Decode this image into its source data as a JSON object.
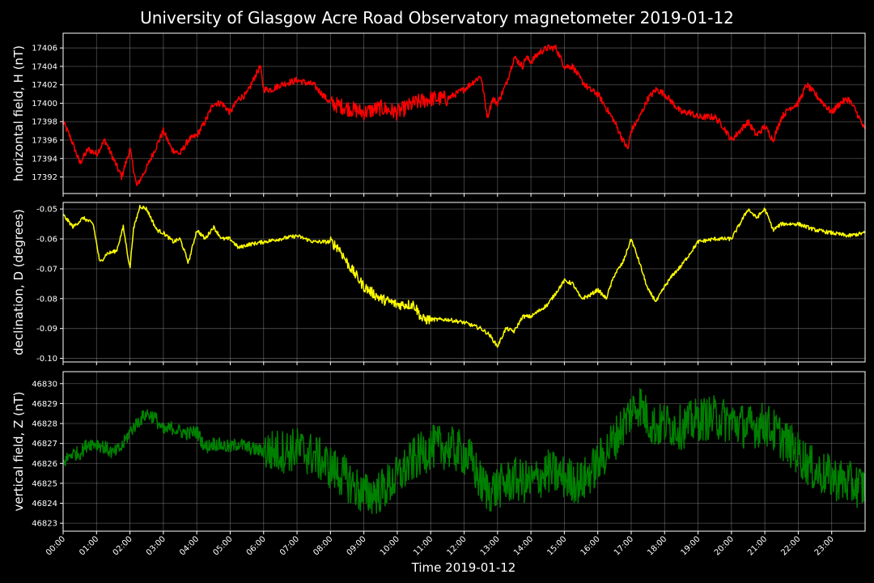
{
  "chart_data": {
    "type": "line",
    "title": "University of Glasgow Acre Road Observatory magnetometer 2019-01-12",
    "xlabel": "Time 2019-01-12",
    "x_ticks": [
      "00:00",
      "01:00",
      "02:00",
      "03:00",
      "04:00",
      "05:00",
      "06:00",
      "07:00",
      "08:00",
      "09:00",
      "10:00",
      "11:00",
      "12:00",
      "13:00",
      "14:00",
      "15:00",
      "16:00",
      "17:00",
      "18:00",
      "19:00",
      "20:00",
      "21:00",
      "22:00",
      "23:00"
    ],
    "x_range_hours": [
      0,
      24
    ],
    "grid": true,
    "panels": [
      {
        "ylabel": "horizontal field, H (nT)",
        "color": "#ff0000",
        "ylim": [
          17390.2,
          17407.6
        ],
        "y_ticks": [
          "17392",
          "17394",
          "17396",
          "17398",
          "17400",
          "17402",
          "17404",
          "17406"
        ],
        "y_tick_values": [
          17392,
          17394,
          17396,
          17398,
          17400,
          17402,
          17404,
          17406
        ],
        "noise": 0.4,
        "series": {
          "hours": [
            0,
            0.25,
            0.5,
            0.75,
            1,
            1.25,
            1.5,
            1.75,
            2,
            2.1,
            2.2,
            2.5,
            2.75,
            3,
            3.25,
            3.5,
            3.75,
            4,
            4.25,
            4.5,
            4.75,
            5,
            5.25,
            5.5,
            5.75,
            5.9,
            6,
            6.25,
            6.5,
            7,
            7.5,
            8,
            8.5,
            9,
            9.5,
            10,
            10.25,
            10.5,
            11,
            11.5,
            12,
            12.5,
            12.7,
            12.85,
            13,
            13.25,
            13.5,
            13.75,
            13.85,
            14,
            14.25,
            14.5,
            14.75,
            15,
            15.25,
            15.5,
            15.75,
            16,
            16.25,
            16.5,
            16.75,
            16.9,
            17,
            17.25,
            17.5,
            17.75,
            18,
            18.25,
            18.5,
            18.75,
            19,
            19.25,
            19.5,
            19.75,
            20,
            20.25,
            20.5,
            20.75,
            21,
            21.25,
            21.5,
            21.75,
            22,
            22.25,
            22.5,
            22.75,
            23,
            23.25,
            23.5,
            23.75,
            24
          ],
          "values": [
            17398,
            17396,
            17393.5,
            17395,
            17394.5,
            17396,
            17394,
            17392,
            17395,
            17393,
            17391,
            17393,
            17395,
            17397,
            17395,
            17394.5,
            17396,
            17396.5,
            17398,
            17400,
            17400,
            17399,
            17400.5,
            17401,
            17403,
            17404,
            17401.5,
            17401.5,
            17402,
            17402.5,
            17402,
            17400,
            17399.5,
            17399,
            17399.5,
            17399,
            17399.5,
            17400,
            17400.5,
            17400.5,
            17401.5,
            17403,
            17398.5,
            17400.5,
            17400,
            17402,
            17405,
            17404,
            17405,
            17404.5,
            17405.5,
            17406,
            17406,
            17404,
            17404,
            17402.5,
            17401.5,
            17401,
            17399.5,
            17398,
            17396,
            17395,
            17397,
            17398.5,
            17400.5,
            17401.5,
            17401,
            17400,
            17399,
            17399,
            17398.5,
            17398.5,
            17398.5,
            17397.5,
            17396,
            17397,
            17398,
            17396.5,
            17397.5,
            17396,
            17398.5,
            17399.5,
            17400,
            17402,
            17401,
            17400,
            17399,
            17400,
            17400.5,
            17399,
            17397
          ]
        }
      },
      {
        "ylabel": "declination, D (degrees)",
        "color": "#ffff00",
        "ylim": [
          -0.1012,
          -0.0478
        ],
        "y_ticks": [
          "-0.05",
          "-0.06",
          "-0.07",
          "-0.08",
          "-0.09",
          "-0.10"
        ],
        "y_tick_values": [
          -0.05,
          -0.06,
          -0.07,
          -0.08,
          -0.09,
          -0.1
        ],
        "noise": 0.0008,
        "series": {
          "hours": [
            0,
            0.3,
            0.6,
            0.9,
            1.1,
            1.3,
            1.6,
            1.8,
            2,
            2.1,
            2.3,
            2.5,
            2.8,
            3,
            3.3,
            3.5,
            3.75,
            4,
            4.25,
            4.5,
            4.75,
            5,
            5.25,
            5.5,
            6,
            6.5,
            7,
            7.5,
            8,
            8.25,
            8.5,
            8.75,
            9,
            9.25,
            9.5,
            10,
            10.5,
            10.75,
            11,
            11.5,
            12,
            12.5,
            12.75,
            13,
            13.25,
            13.5,
            13.75,
            14,
            14.5,
            15,
            15.25,
            15.5,
            15.75,
            16,
            16.25,
            16.5,
            16.75,
            17,
            17.25,
            17.5,
            17.75,
            18,
            18.25,
            18.5,
            19,
            19.5,
            20,
            20.5,
            20.75,
            21,
            21.25,
            21.5,
            22,
            22.5,
            23,
            23.5,
            24
          ],
          "values": [
            -0.052,
            -0.056,
            -0.053,
            -0.055,
            -0.068,
            -0.065,
            -0.064,
            -0.056,
            -0.07,
            -0.057,
            -0.049,
            -0.05,
            -0.057,
            -0.058,
            -0.061,
            -0.06,
            -0.068,
            -0.057,
            -0.06,
            -0.056,
            -0.06,
            -0.06,
            -0.063,
            -0.062,
            -0.061,
            -0.06,
            -0.059,
            -0.061,
            -0.061,
            -0.063,
            -0.068,
            -0.072,
            -0.076,
            -0.078,
            -0.08,
            -0.082,
            -0.082,
            -0.087,
            -0.087,
            -0.087,
            -0.088,
            -0.09,
            -0.092,
            -0.096,
            -0.09,
            -0.091,
            -0.086,
            -0.086,
            -0.082,
            -0.074,
            -0.075,
            -0.08,
            -0.079,
            -0.077,
            -0.08,
            -0.072,
            -0.068,
            -0.06,
            -0.068,
            -0.077,
            -0.081,
            -0.076,
            -0.072,
            -0.069,
            -0.061,
            -0.06,
            -0.06,
            -0.05,
            -0.053,
            -0.05,
            -0.057,
            -0.055,
            -0.055,
            -0.057,
            -0.058,
            -0.059,
            -0.058
          ]
        }
      },
      {
        "ylabel": "vertical field, Z (nT)",
        "color": "#008000",
        "ylim": [
          46822.6,
          46830.6
        ],
        "y_ticks": [
          "46823",
          "46824",
          "46825",
          "46826",
          "46827",
          "46828",
          "46829",
          "46830"
        ],
        "y_tick_values": [
          46823,
          46824,
          46825,
          46826,
          46827,
          46828,
          46829,
          46830
        ],
        "noise": 0.7,
        "series": {
          "hours": [
            0,
            0.25,
            0.5,
            0.75,
            1,
            1.25,
            1.5,
            1.75,
            2,
            2.25,
            2.5,
            2.75,
            3,
            3.25,
            3.5,
            3.75,
            4,
            4.25,
            4.5,
            4.75,
            5,
            5.25,
            5.5,
            6,
            6.5,
            7,
            7.5,
            8,
            8.5,
            9,
            9.25,
            9.5,
            10,
            10.5,
            11,
            11.5,
            12,
            12.25,
            12.5,
            12.75,
            13,
            13.5,
            14,
            14.5,
            15,
            15.5,
            16,
            16.5,
            17,
            17.25,
            17.5,
            17.75,
            18,
            18.5,
            19,
            19.5,
            20,
            20.5,
            21,
            21.5,
            22,
            22.5,
            23,
            23.5,
            24
          ],
          "values": [
            46826,
            46826.5,
            46826.5,
            46827,
            46827,
            46826.8,
            46826.5,
            46826.8,
            46827.6,
            46828.1,
            46828.5,
            46828.3,
            46827.6,
            46827.8,
            46827.6,
            46827.5,
            46827.6,
            46826.8,
            46827,
            46826.9,
            46826.8,
            46827,
            46826.8,
            46826.6,
            46826.6,
            46826.7,
            46826.4,
            46825.8,
            46825.2,
            46824.4,
            46824.5,
            46824.6,
            46825.3,
            46826.2,
            46826.8,
            46826.8,
            46826.5,
            46826.0,
            46825.0,
            46824.6,
            46824.8,
            46825.2,
            46825.0,
            46825.6,
            46825.3,
            46825.0,
            46826.0,
            46827.2,
            46828.6,
            46829.0,
            46828.2,
            46827.8,
            46828.0,
            46827.8,
            46828.2,
            46828.3,
            46828.1,
            46827.8,
            46828.0,
            46827.3,
            46826.5,
            46825.6,
            46825.3,
            46825.0,
            46824.8
          ]
        }
      }
    ]
  }
}
